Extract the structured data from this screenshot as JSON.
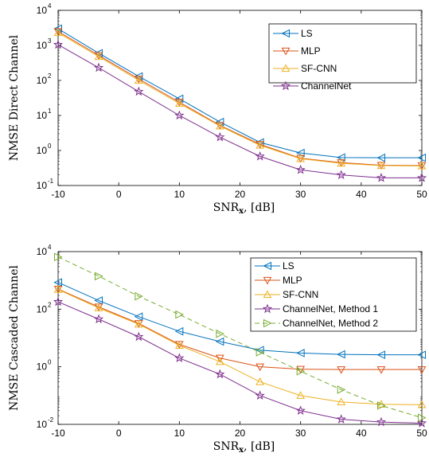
{
  "colors": {
    "LS": "#0072BD",
    "MLP": "#D95319",
    "SF-CNN": "#EDB120",
    "ChannelNet": "#7E2F8E",
    "ChannelNet2": "#77AC30"
  },
  "chart_data": [
    {
      "type": "line",
      "xlabel": "SNR",
      "xlabel_sub": "x",
      "xlabel_unit": ", [dB]",
      "ylabel": "NMSE Direct Channel",
      "y_scale": "log",
      "xlim": [
        -10,
        50
      ],
      "ylim": [
        0.1,
        10000
      ],
      "xticks": [
        "-10",
        "0",
        "10",
        "20",
        "30",
        "40",
        "50"
      ],
      "yticks": [
        {
          "base": "10",
          "exp": "-1"
        },
        {
          "base": "10",
          "exp": "0"
        },
        {
          "base": "10",
          "exp": "1"
        },
        {
          "base": "10",
          "exp": "2"
        },
        {
          "base": "10",
          "exp": "3"
        },
        {
          "base": "10",
          "exp": "4"
        }
      ],
      "legend_position": "top-right",
      "x": [
        -10,
        -3.3,
        3.3,
        10,
        16.7,
        23.3,
        30,
        36.7,
        43.3,
        50
      ],
      "series": [
        {
          "name": "LS",
          "marker": "triangle-left",
          "line": "solid",
          "values": [
            3000,
            600,
            130,
            30,
            6.5,
            1.7,
            0.85,
            0.63,
            0.62,
            0.62
          ]
        },
        {
          "name": "MLP",
          "marker": "triangle-down",
          "line": "solid",
          "values": [
            2500,
            520,
            110,
            24,
            5.2,
            1.5,
            0.6,
            0.45,
            0.38,
            0.37
          ]
        },
        {
          "name": "SF-CNN",
          "marker": "triangle-up",
          "line": "solid",
          "values": [
            2300,
            480,
            100,
            22,
            5.0,
            1.4,
            0.58,
            0.43,
            0.37,
            0.36
          ]
        },
        {
          "name": "ChannelNet",
          "marker": "star",
          "line": "solid",
          "values": [
            1050,
            230,
            48,
            10,
            2.4,
            0.68,
            0.28,
            0.2,
            0.165,
            0.165
          ]
        }
      ]
    },
    {
      "type": "line",
      "xlabel": "SNR",
      "xlabel_sub": "x",
      "xlabel_unit": ", [dB]",
      "ylabel": "NMSE Cascaded Channel",
      "y_scale": "log",
      "xlim": [
        -10,
        50
      ],
      "ylim": [
        0.01,
        10000
      ],
      "xticks": [
        "-10",
        "0",
        "10",
        "20",
        "30",
        "40",
        "50"
      ],
      "yticks": [
        {
          "base": "10",
          "exp": "-2"
        },
        {
          "base": "10",
          "exp": "0"
        },
        {
          "base": "10",
          "exp": "2"
        },
        {
          "base": "10",
          "exp": "4"
        }
      ],
      "legend_position": "top-right",
      "x": [
        -10,
        -3.3,
        3.3,
        10,
        16.7,
        23.3,
        30,
        36.7,
        43.3,
        50
      ],
      "series": [
        {
          "name": "LS",
          "marker": "triangle-left",
          "line": "solid",
          "values": [
            850,
            200,
            55,
            17,
            7.5,
            3.8,
            3.0,
            2.7,
            2.6,
            2.6
          ]
        },
        {
          "name": "MLP",
          "marker": "triangle-down",
          "line": "solid",
          "values": [
            500,
            120,
            32,
            6,
            2.0,
            1.0,
            0.82,
            0.8,
            0.8,
            0.8
          ]
        },
        {
          "name": "SF-CNN",
          "marker": "triangle-up",
          "line": "solid",
          "values": [
            480,
            110,
            30,
            5.5,
            1.5,
            0.3,
            0.1,
            0.06,
            0.05,
            0.048
          ]
        },
        {
          "name": "ChannelNet, Method 1",
          "marker": "star",
          "line": "solid",
          "values": [
            180,
            45,
            11,
            2.0,
            0.55,
            0.1,
            0.03,
            0.015,
            0.012,
            0.011
          ]
        },
        {
          "name": "ChannelNet, Method 2",
          "marker": "triangle-right",
          "line": "dashed",
          "values": [
            6500,
            1400,
            280,
            65,
            14,
            3.2,
            0.7,
            0.16,
            0.045,
            0.017
          ]
        }
      ]
    }
  ]
}
